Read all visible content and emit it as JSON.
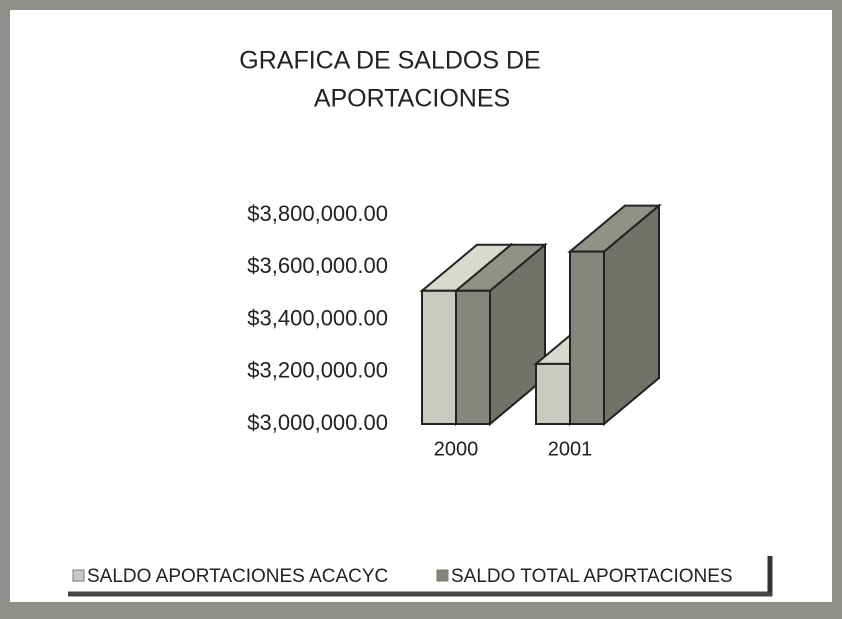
{
  "chart_data": {
    "type": "bar3d",
    "title": [
      "GRAFICA DE SALDOS DE",
      "APORTACIONES"
    ],
    "categories": [
      "2000",
      "2001"
    ],
    "series": [
      {
        "name": "SALDO APORTACIONES ACACYC",
        "color": "#c9c9c1",
        "values": [
          3510000,
          3230000
        ]
      },
      {
        "name": "SALDO TOTAL APORTACIONES",
        "color": "#86867e",
        "values": [
          3510000,
          3660000
        ]
      }
    ],
    "ylim": [
      3000000,
      3800000
    ],
    "yticks": [
      {
        "value": 3000000,
        "label": "$3,000,000.00"
      },
      {
        "value": 3200000,
        "label": "$3,200,000.00"
      },
      {
        "value": 3400000,
        "label": "$3,400,000.00"
      },
      {
        "value": 3600000,
        "label": "$3,600,000.00"
      },
      {
        "value": 3800000,
        "label": "$3,800,000.00"
      }
    ],
    "grid": false,
    "legend": "bottom"
  }
}
